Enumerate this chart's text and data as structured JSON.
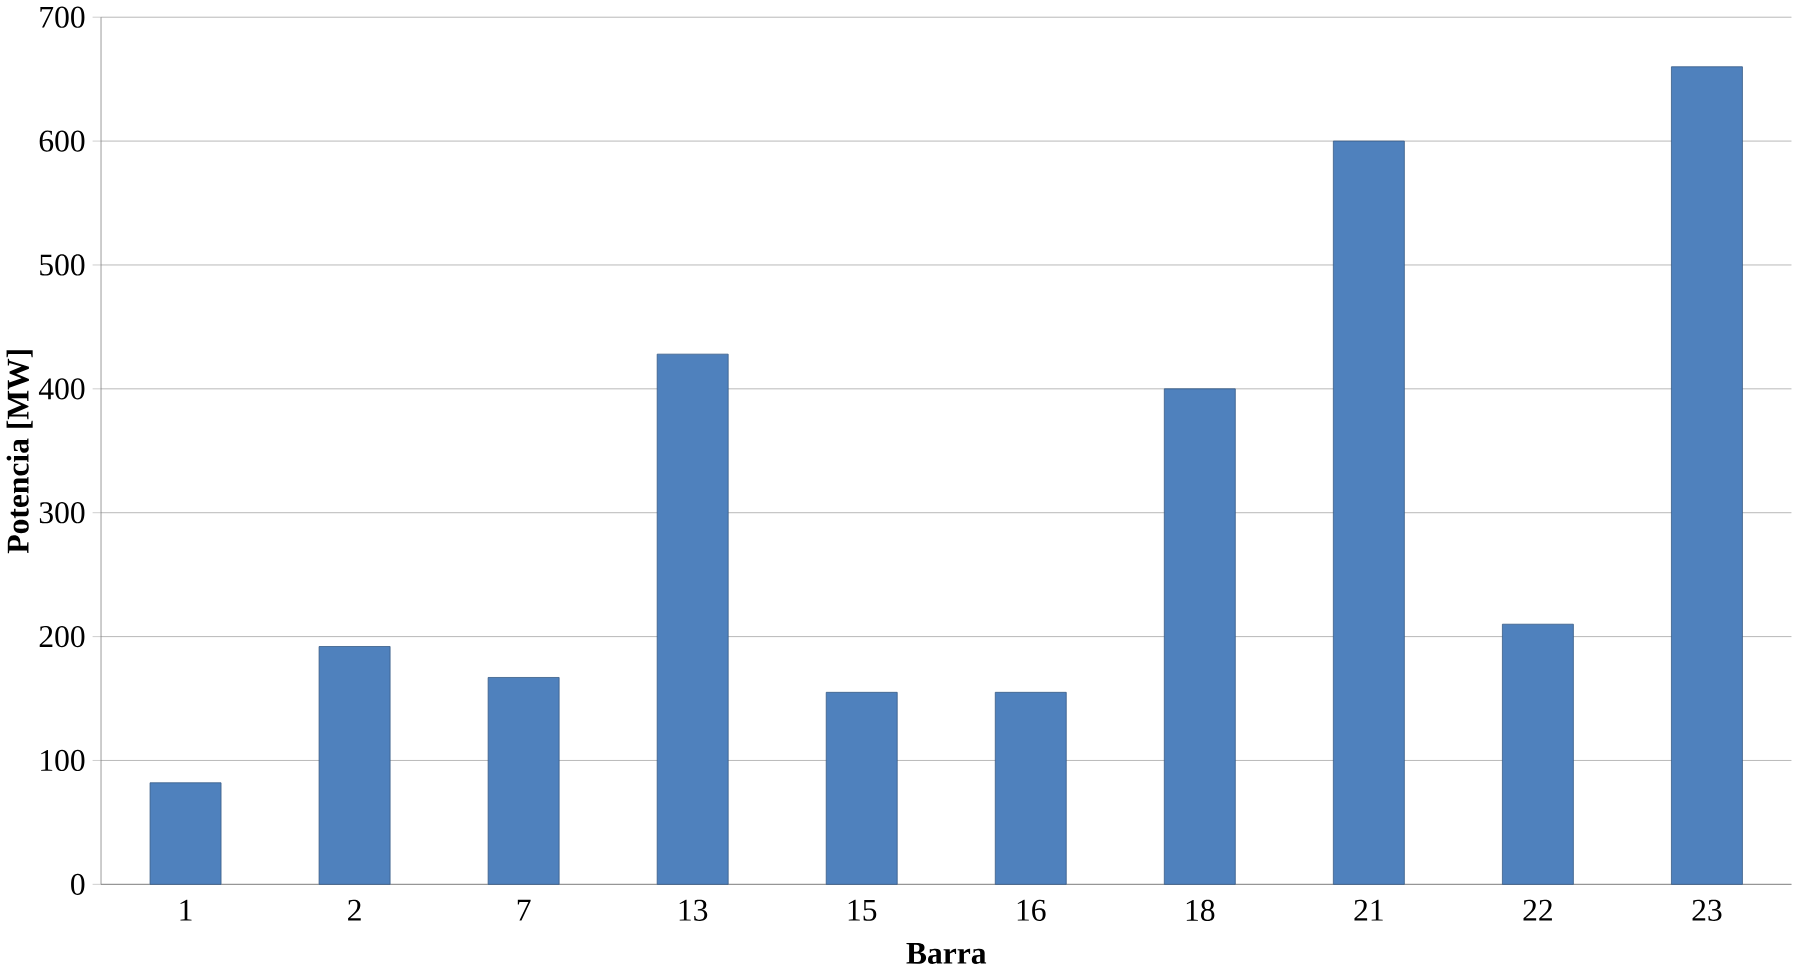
{
  "chart_data": {
    "type": "bar",
    "xlabel": "Barra",
    "ylabel": "Potencia [MW]",
    "categories": [
      "1",
      "2",
      "7",
      "13",
      "15",
      "16",
      "18",
      "21",
      "22",
      "23"
    ],
    "values": [
      82,
      192,
      167,
      428,
      155,
      155,
      400,
      600,
      210,
      660
    ],
    "color": "#4f81bd",
    "ylim": [
      0,
      700
    ],
    "yticks": [
      0,
      100,
      200,
      300,
      400,
      500,
      600,
      700
    ],
    "grid": "y"
  }
}
